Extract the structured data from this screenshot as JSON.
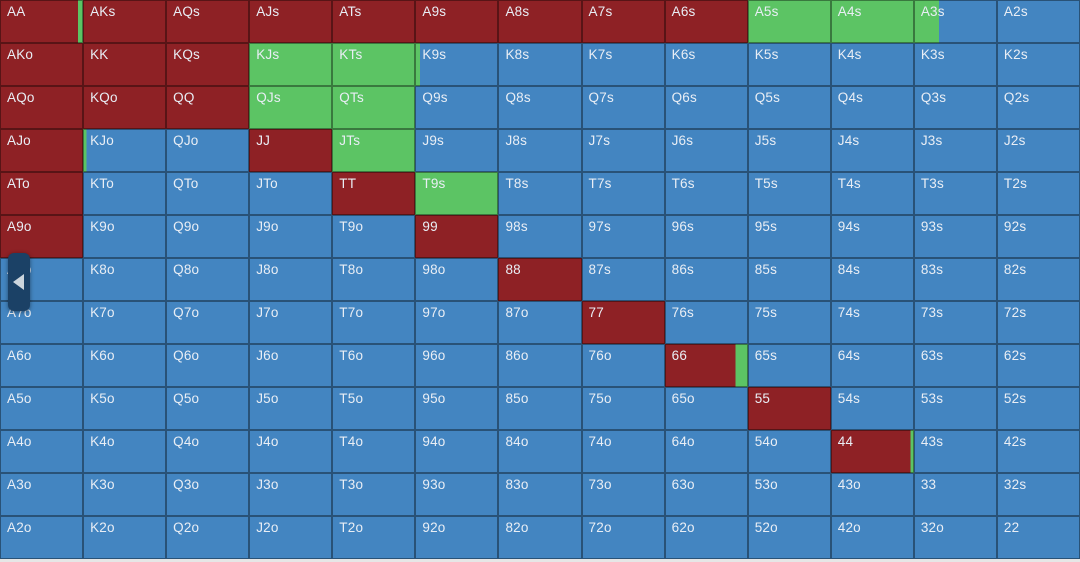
{
  "actions": {
    "r": {
      "name": "raise",
      "color": "#8e2125"
    },
    "g": {
      "name": "call",
      "color": "#5cc464"
    },
    "b": {
      "name": "fold",
      "color": "#4385c1"
    }
  },
  "ui": {
    "collapse_button": {
      "icon": "left-arrow",
      "color": "#1b4166",
      "arrow_color": "#ccd5dd"
    },
    "cell_border_color": "rgba(0,0,0,0.38)",
    "label_color": "#e9eef5",
    "bottom_strip_color": "#e6e6e6"
  },
  "grid": {
    "rows": [
      [
        [
          "AA",
          "r94 g6"
        ],
        [
          "AKs",
          "r"
        ],
        [
          "AQs",
          "r"
        ],
        [
          "AJs",
          "r"
        ],
        [
          "ATs",
          "r"
        ],
        [
          "A9s",
          "r"
        ],
        [
          "A8s",
          "r"
        ],
        [
          "A7s",
          "r"
        ],
        [
          "A6s",
          "r"
        ],
        [
          "A5s",
          "g"
        ],
        [
          "A4s",
          "g"
        ],
        [
          "A3s",
          "g30 b70"
        ],
        [
          "A2s",
          "b"
        ]
      ],
      [
        [
          "AKo",
          "r"
        ],
        [
          "KK",
          "r"
        ],
        [
          "KQs",
          "r"
        ],
        [
          "KJs",
          "g"
        ],
        [
          "KTs",
          "g"
        ],
        [
          "K9s",
          "g6 b94"
        ],
        [
          "K8s",
          "b"
        ],
        [
          "K7s",
          "b"
        ],
        [
          "K6s",
          "b"
        ],
        [
          "K5s",
          "b"
        ],
        [
          "K4s",
          "b"
        ],
        [
          "K3s",
          "b"
        ],
        [
          "K2s",
          "b"
        ]
      ],
      [
        [
          "AQo",
          "r"
        ],
        [
          "KQo",
          "r"
        ],
        [
          "QQ",
          "r"
        ],
        [
          "QJs",
          "g"
        ],
        [
          "QTs",
          "g"
        ],
        [
          "Q9s",
          "b"
        ],
        [
          "Q8s",
          "b"
        ],
        [
          "Q7s",
          "b"
        ],
        [
          "Q6s",
          "b"
        ],
        [
          "Q5s",
          "b"
        ],
        [
          "Q4s",
          "b"
        ],
        [
          "Q3s",
          "b"
        ],
        [
          "Q2s",
          "b"
        ]
      ],
      [
        [
          "AJo",
          "r"
        ],
        [
          "KJo",
          "g4 b96"
        ],
        [
          "QJo",
          "b"
        ],
        [
          "JJ",
          "r"
        ],
        [
          "JTs",
          "g"
        ],
        [
          "J9s",
          "b"
        ],
        [
          "J8s",
          "b"
        ],
        [
          "J7s",
          "b"
        ],
        [
          "J6s",
          "b"
        ],
        [
          "J5s",
          "b"
        ],
        [
          "J4s",
          "b"
        ],
        [
          "J3s",
          "b"
        ],
        [
          "J2s",
          "b"
        ]
      ],
      [
        [
          "ATo",
          "r"
        ],
        [
          "KTo",
          "b"
        ],
        [
          "QTo",
          "b"
        ],
        [
          "JTo",
          "b"
        ],
        [
          "TT",
          "r"
        ],
        [
          "T9s",
          "g"
        ],
        [
          "T8s",
          "b"
        ],
        [
          "T7s",
          "b"
        ],
        [
          "T6s",
          "b"
        ],
        [
          "T5s",
          "b"
        ],
        [
          "T4s",
          "b"
        ],
        [
          "T3s",
          "b"
        ],
        [
          "T2s",
          "b"
        ]
      ],
      [
        [
          "A9o",
          "r"
        ],
        [
          "K9o",
          "b"
        ],
        [
          "Q9o",
          "b"
        ],
        [
          "J9o",
          "b"
        ],
        [
          "T9o",
          "b"
        ],
        [
          "99",
          "r"
        ],
        [
          "98s",
          "b"
        ],
        [
          "97s",
          "b"
        ],
        [
          "96s",
          "b"
        ],
        [
          "95s",
          "b"
        ],
        [
          "94s",
          "b"
        ],
        [
          "93s",
          "b"
        ],
        [
          "92s",
          "b"
        ]
      ],
      [
        [
          "A8o",
          "b"
        ],
        [
          "K8o",
          "b"
        ],
        [
          "Q8o",
          "b"
        ],
        [
          "J8o",
          "b"
        ],
        [
          "T8o",
          "b"
        ],
        [
          "98o",
          "b"
        ],
        [
          "88",
          "r"
        ],
        [
          "87s",
          "b"
        ],
        [
          "86s",
          "b"
        ],
        [
          "85s",
          "b"
        ],
        [
          "84s",
          "b"
        ],
        [
          "83s",
          "b"
        ],
        [
          "82s",
          "b"
        ]
      ],
      [
        [
          "A7o",
          "b"
        ],
        [
          "K7o",
          "b"
        ],
        [
          "Q7o",
          "b"
        ],
        [
          "J7o",
          "b"
        ],
        [
          "T7o",
          "b"
        ],
        [
          "97o",
          "b"
        ],
        [
          "87o",
          "b"
        ],
        [
          "77",
          "r"
        ],
        [
          "76s",
          "b"
        ],
        [
          "75s",
          "b"
        ],
        [
          "74s",
          "b"
        ],
        [
          "73s",
          "b"
        ],
        [
          "72s",
          "b"
        ]
      ],
      [
        [
          "A6o",
          "b"
        ],
        [
          "K6o",
          "b"
        ],
        [
          "Q6o",
          "b"
        ],
        [
          "J6o",
          "b"
        ],
        [
          "T6o",
          "b"
        ],
        [
          "96o",
          "b"
        ],
        [
          "86o",
          "b"
        ],
        [
          "76o",
          "b"
        ],
        [
          "66",
          "r85 g15"
        ],
        [
          "65s",
          "b"
        ],
        [
          "64s",
          "b"
        ],
        [
          "63s",
          "b"
        ],
        [
          "62s",
          "b"
        ]
      ],
      [
        [
          "A5o",
          "b"
        ],
        [
          "K5o",
          "b"
        ],
        [
          "Q5o",
          "b"
        ],
        [
          "J5o",
          "b"
        ],
        [
          "T5o",
          "b"
        ],
        [
          "95o",
          "b"
        ],
        [
          "85o",
          "b"
        ],
        [
          "75o",
          "b"
        ],
        [
          "65o",
          "b"
        ],
        [
          "55",
          "r"
        ],
        [
          "54s",
          "b"
        ],
        [
          "53s",
          "b"
        ],
        [
          "52s",
          "b"
        ]
      ],
      [
        [
          "A4o",
          "b"
        ],
        [
          "K4o",
          "b"
        ],
        [
          "Q4o",
          "b"
        ],
        [
          "J4o",
          "b"
        ],
        [
          "T4o",
          "b"
        ],
        [
          "94o",
          "b"
        ],
        [
          "84o",
          "b"
        ],
        [
          "74o",
          "b"
        ],
        [
          "64o",
          "b"
        ],
        [
          "54o",
          "b"
        ],
        [
          "44",
          "r96 g4"
        ],
        [
          "43s",
          "b"
        ],
        [
          "42s",
          "b"
        ]
      ],
      [
        [
          "A3o",
          "b"
        ],
        [
          "K3o",
          "b"
        ],
        [
          "Q3o",
          "b"
        ],
        [
          "J3o",
          "b"
        ],
        [
          "T3o",
          "b"
        ],
        [
          "93o",
          "b"
        ],
        [
          "83o",
          "b"
        ],
        [
          "73o",
          "b"
        ],
        [
          "63o",
          "b"
        ],
        [
          "53o",
          "b"
        ],
        [
          "43o",
          "b"
        ],
        [
          "33",
          "b"
        ],
        [
          "32s",
          "b"
        ]
      ],
      [
        [
          "A2o",
          "b"
        ],
        [
          "K2o",
          "b"
        ],
        [
          "Q2o",
          "b"
        ],
        [
          "J2o",
          "b"
        ],
        [
          "T2o",
          "b"
        ],
        [
          "92o",
          "b"
        ],
        [
          "82o",
          "b"
        ],
        [
          "72o",
          "b"
        ],
        [
          "62o",
          "b"
        ],
        [
          "52o",
          "b"
        ],
        [
          "42o",
          "b"
        ],
        [
          "32o",
          "b"
        ],
        [
          "22",
          "b"
        ]
      ]
    ]
  }
}
